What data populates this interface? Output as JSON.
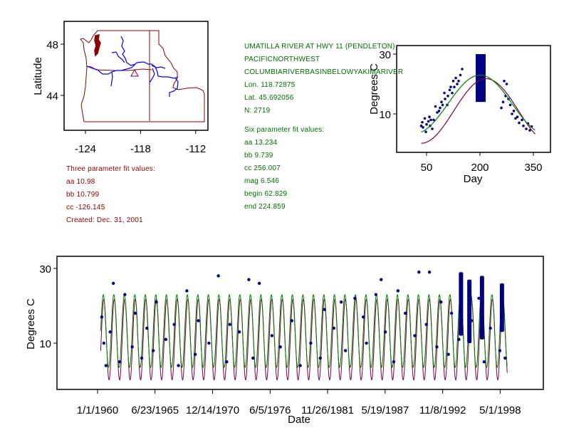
{
  "station": {
    "name": "UMATILLA RIVER AT HWY 11 (PENDLETON)",
    "region": "PACIFICNORTHWEST",
    "basin": "COLUMBIARIVERBASINBELOWYAKIMARIVER",
    "lon": "Lon. 118.72875",
    "lat": "Lat. 45.692056",
    "n": "N: 2719"
  },
  "six_param": {
    "title": "Six parameter fit values:",
    "aa": "aa 13.234",
    "bb": "bb 9.739",
    "cc": "cc 256.007",
    "mag": "mag 6.546",
    "begin": "begin 62.829",
    "end": "end 224.859"
  },
  "three_param": {
    "title": "Three parameter fit values:",
    "aa": "aa 10.98",
    "bb": "bb 10.799",
    "cc": "cc -126.145",
    "created": "Created:   Dec. 31, 2001"
  },
  "colors": {
    "points": "#000080",
    "three_fit": "#800040",
    "six_fit": "#008000",
    "state_lines": "#8b0000",
    "rivers": "#0000ff"
  },
  "chart_data": [
    {
      "type": "map",
      "ylabel": "Latitude",
      "x_ticks": [
        "-124",
        "-118",
        "-112"
      ],
      "y_ticks": [
        "48",
        "44"
      ],
      "marker": {
        "symbol": "triangle",
        "lon": -118.73,
        "lat": 45.69
      }
    },
    {
      "type": "scatter",
      "xlabel": "Day",
      "ylabel": "Degrees C",
      "x_ticks": [
        "50",
        "200",
        "350"
      ],
      "y_ticks": [
        "30",
        "10"
      ],
      "xlim": [
        0,
        400
      ],
      "ylim": [
        -1,
        35
      ],
      "points": [
        [
          35,
          6
        ],
        [
          38,
          7.2
        ],
        [
          40,
          5.5
        ],
        [
          45,
          8.5
        ],
        [
          48,
          4
        ],
        [
          50,
          6.5
        ],
        [
          55,
          7.5
        ],
        [
          58,
          9
        ],
        [
          60,
          6
        ],
        [
          62,
          8
        ],
        [
          66,
          5
        ],
        [
          70,
          8
        ],
        [
          75,
          12.5
        ],
        [
          80,
          10.5
        ],
        [
          85,
          11
        ],
        [
          88,
          12
        ],
        [
          92,
          14
        ],
        [
          95,
          13
        ],
        [
          100,
          17
        ],
        [
          102,
          15
        ],
        [
          108,
          13
        ],
        [
          110,
          16
        ],
        [
          115,
          18
        ],
        [
          118,
          19
        ],
        [
          122,
          17
        ],
        [
          125,
          21
        ],
        [
          128,
          19
        ],
        [
          132,
          22
        ],
        [
          136,
          20
        ],
        [
          140,
          21
        ],
        [
          145,
          23
        ],
        [
          150,
          25
        ],
        [
          260,
          12
        ],
        [
          265,
          14
        ],
        [
          268,
          21
        ],
        [
          272,
          16
        ],
        [
          275,
          20
        ],
        [
          280,
          15
        ],
        [
          285,
          13
        ],
        [
          290,
          10
        ],
        [
          295,
          11
        ],
        [
          300,
          8.5
        ],
        [
          305,
          9
        ],
        [
          310,
          7
        ],
        [
          318,
          8
        ],
        [
          322,
          6
        ],
        [
          330,
          5
        ],
        [
          335,
          6.8
        ],
        [
          340,
          4.5
        ],
        [
          345,
          5.8
        ]
      ],
      "dense_band": {
        "day_range": [
          188,
          216
        ],
        "temp_range": [
          14,
          30
        ]
      },
      "fits": {
        "three_parameter": {
          "aa": 10.98,
          "bb": 10.799,
          "cc": -126.145
        },
        "six_parameter": {
          "aa": 13.234,
          "bb": 9.739,
          "cc": 256.007
        }
      },
      "fit_day_range": [
        35,
        355
      ]
    },
    {
      "type": "line",
      "xlabel": "Date",
      "ylabel": "Degrees C",
      "x_ticks": [
        "1/1/1960",
        "6/23/1965",
        "12/14/1970",
        "6/5/1976",
        "11/26/1981",
        "5/19/1987",
        "11/8/1992",
        "5/1/1998"
      ],
      "x_tick_years": [
        1960.0,
        1965.47,
        1970.95,
        1976.43,
        1981.9,
        1987.38,
        1992.86,
        1998.33
      ],
      "y_ticks": [
        "30",
        "10"
      ],
      "xlim": [
        1956.1,
        2000.8
      ],
      "ylim": [
        -1,
        34
      ],
      "year_range": [
        1960.3,
        1999.0
      ],
      "points": [
        [
          1960.4,
          17
        ],
        [
          1960.6,
          10
        ],
        [
          1960.8,
          4
        ],
        [
          1961.2,
          13
        ],
        [
          1961.5,
          26
        ],
        [
          1962.1,
          5
        ],
        [
          1962.6,
          23
        ],
        [
          1963.3,
          9
        ],
        [
          1963.6,
          18
        ],
        [
          1964.2,
          6
        ],
        [
          1964.7,
          14
        ],
        [
          1965.3,
          8
        ],
        [
          1965.6,
          21
        ],
        [
          1966.5,
          11
        ],
        [
          1967.3,
          15
        ],
        [
          1967.7,
          4
        ],
        [
          1968.5,
          24
        ],
        [
          1969.3,
          7
        ],
        [
          1969.6,
          16
        ],
        [
          1970.6,
          10
        ],
        [
          1971.5,
          28
        ],
        [
          1972.3,
          5
        ],
        [
          1972.6,
          15
        ],
        [
          1973.5,
          13
        ],
        [
          1974.4,
          27
        ],
        [
          1974.8,
          6
        ],
        [
          1975.4,
          26
        ],
        [
          1976.6,
          12
        ],
        [
          1977.4,
          9
        ],
        [
          1978.5,
          16
        ],
        [
          1979.3,
          4
        ],
        [
          1980.3,
          10
        ],
        [
          1981.2,
          6
        ],
        [
          1981.6,
          19
        ],
        [
          1982.5,
          14
        ],
        [
          1983.2,
          21
        ],
        [
          1983.6,
          8
        ],
        [
          1984.5,
          22
        ],
        [
          1985.3,
          17
        ],
        [
          1985.6,
          10
        ],
        [
          1986.5,
          23
        ],
        [
          1987.0,
          27
        ],
        [
          1987.4,
          13
        ],
        [
          1988.2,
          5
        ],
        [
          1988.6,
          24
        ],
        [
          1989.3,
          18
        ],
        [
          1990.2,
          12
        ],
        [
          1990.6,
          29
        ],
        [
          1991.3,
          15
        ],
        [
          1991.6,
          29
        ],
        [
          1992.3,
          9
        ],
        [
          1992.7,
          21
        ],
        [
          1993.4,
          7
        ],
        [
          1993.7,
          18
        ],
        [
          1994.4,
          11
        ],
        [
          1995.6,
          16
        ],
        [
          1996.3,
          22
        ],
        [
          1996.8,
          5
        ],
        [
          1997.4,
          14
        ],
        [
          1998.3,
          8
        ],
        [
          1998.8,
          6
        ]
      ],
      "dense_bars": [
        {
          "year": 1994.6,
          "temp_range": [
            12,
            29
          ]
        },
        {
          "year": 1995.4,
          "temp_range": [
            10,
            27
          ]
        },
        {
          "year": 1996.6,
          "temp_range": [
            11,
            28
          ]
        },
        {
          "year": 1998.5,
          "temp_range": [
            13,
            26
          ]
        }
      ],
      "fits": {
        "three_parameter": {
          "aa": 10.98,
          "bb": 10.799,
          "cc": -126.145
        },
        "six_parameter": {
          "aa": 13.234,
          "bb": 9.739,
          "cc": 256.007
        }
      }
    }
  ]
}
